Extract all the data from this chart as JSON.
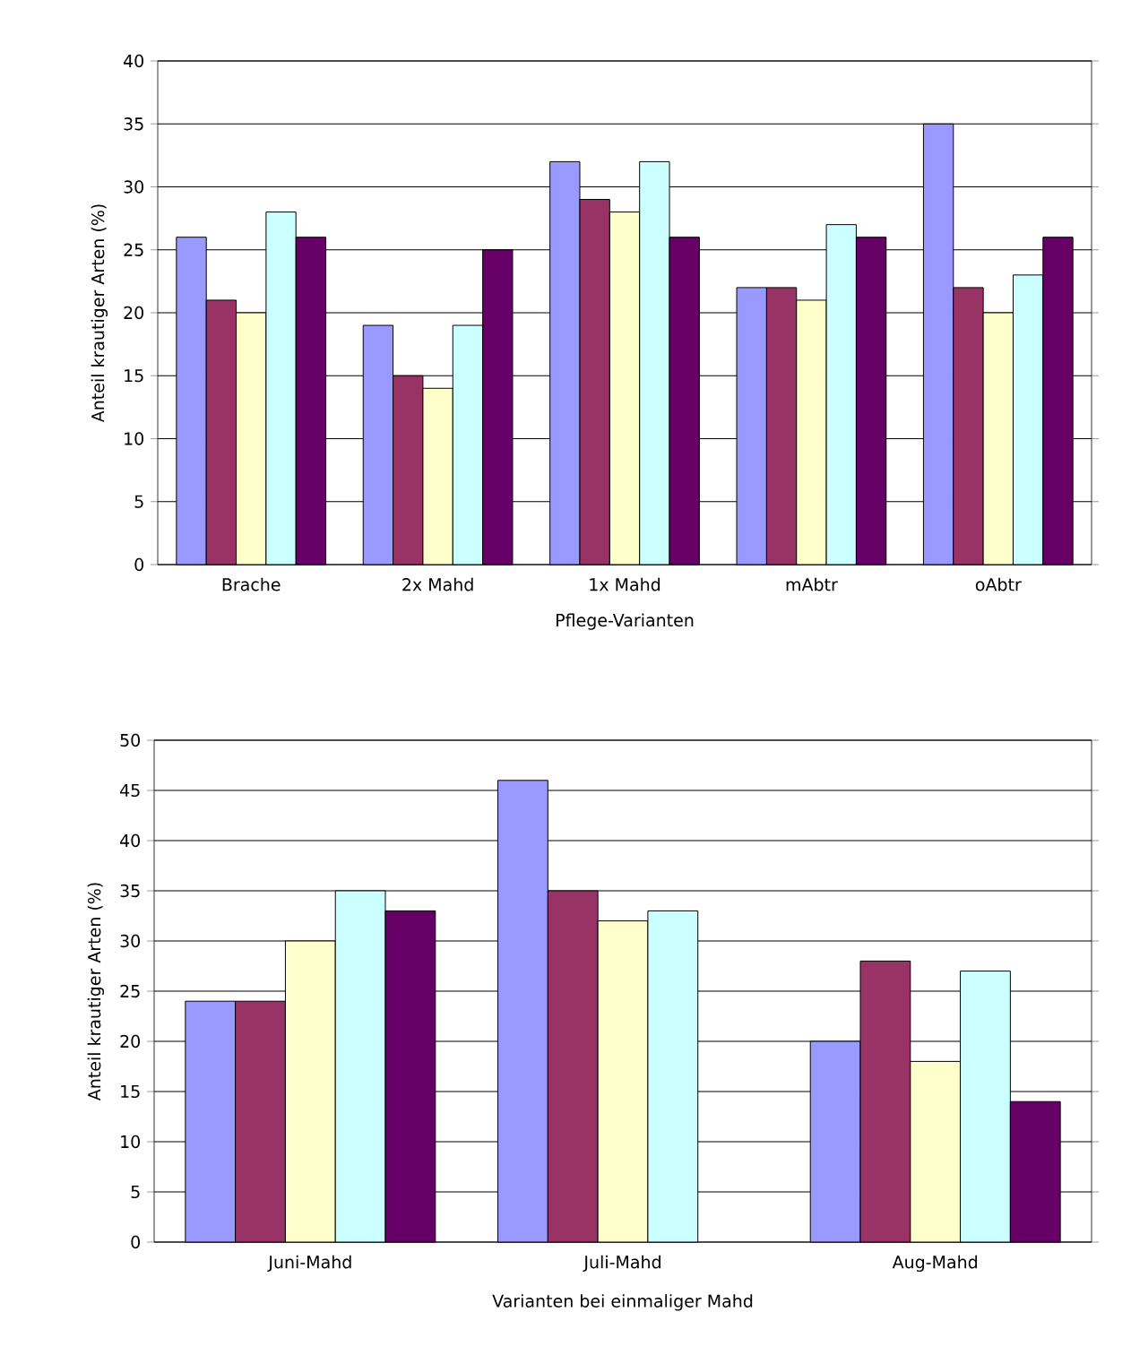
{
  "chart_data": [
    {
      "type": "bar",
      "xlabel": "Pflege-Varianten",
      "ylabel": "Anteil krautiger Arten (%)",
      "categories": [
        "Brache",
        "2x Mahd",
        "1x Mahd",
        "mAbtr",
        "oAbtr"
      ],
      "series": [
        {
          "color": "#9999ff",
          "values": [
            26,
            19,
            32,
            22,
            35
          ]
        },
        {
          "color": "#993366",
          "values": [
            21,
            15,
            29,
            22,
            22
          ]
        },
        {
          "color": "#ffffcc",
          "values": [
            20,
            14,
            28,
            21,
            20
          ]
        },
        {
          "color": "#ccffff",
          "values": [
            28,
            19,
            32,
            27,
            23
          ]
        },
        {
          "color": "#660066",
          "values": [
            26,
            25,
            26,
            26,
            26
          ]
        }
      ],
      "ylim": [
        0,
        40
      ],
      "yticks": [
        0,
        5,
        10,
        15,
        20,
        25,
        30,
        35,
        40
      ],
      "grid": "y"
    },
    {
      "type": "bar",
      "xlabel": "Varianten bei einmaliger Mahd",
      "ylabel": "Anteil krautiger Arten (%)",
      "categories": [
        "Juni-Mahd",
        "Juli-Mahd",
        "Aug-Mahd"
      ],
      "series": [
        {
          "color": "#9999ff",
          "values": [
            24,
            46,
            20
          ]
        },
        {
          "color": "#993366",
          "values": [
            24,
            35,
            28
          ]
        },
        {
          "color": "#ffffcc",
          "values": [
            30,
            32,
            18
          ]
        },
        {
          "color": "#ccffff",
          "values": [
            35,
            33,
            27
          ]
        },
        {
          "color": "#660066",
          "values": [
            33,
            null,
            14
          ]
        }
      ],
      "ylim": [
        0,
        50
      ],
      "yticks": [
        0,
        5,
        10,
        15,
        20,
        25,
        30,
        35,
        40,
        45,
        50
      ],
      "grid": "y"
    }
  ]
}
